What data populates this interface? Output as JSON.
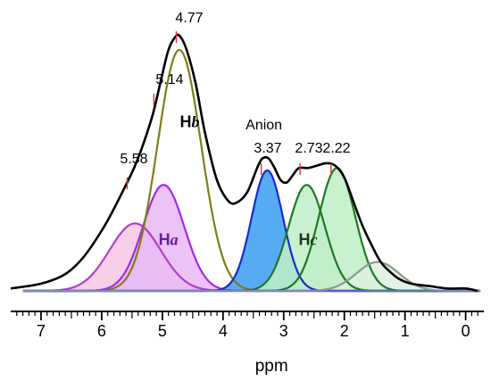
{
  "chart_data": {
    "type": "line",
    "xlabel": "ppm",
    "x_reversed": true,
    "xlim": [
      7.5,
      -0.3
    ],
    "x_ticks": [
      7,
      6,
      5,
      4,
      3,
      2,
      1,
      0
    ],
    "minor_tick_step": 0.1,
    "peak_labels": [
      {
        "x": 5.58,
        "text": "5.58"
      },
      {
        "x": 5.14,
        "text": "5.14"
      },
      {
        "x": 4.77,
        "text": "4.77"
      },
      {
        "x": 3.37,
        "text": "3.37"
      },
      {
        "x": 2.73,
        "text": "2.73"
      },
      {
        "x": 2.22,
        "text": "2.22"
      }
    ],
    "annotations": [
      {
        "text": "Anion",
        "x": 3.37
      },
      {
        "text": "H",
        "sub": "b",
        "x": 4.55,
        "y": 0.68,
        "color": "#000000"
      },
      {
        "text": "H",
        "sub": "a",
        "x": 4.9,
        "y": 0.19,
        "color": "#6a1b9a"
      },
      {
        "text": "H",
        "sub": "c",
        "x": 2.6,
        "y": 0.19,
        "color": "#1b3a1b"
      }
    ],
    "components": [
      {
        "center": 5.45,
        "height": 0.28,
        "width": 0.42,
        "stroke": "#b040c8",
        "fill": "#f4c6e4"
      },
      {
        "center": 4.98,
        "height": 0.44,
        "width": 0.34,
        "stroke": "#a42ae8",
        "fill": "#e8b8f6"
      },
      {
        "center": 4.72,
        "height": 1.0,
        "width": 0.36,
        "stroke": "#7e7e1a",
        "fill": "none"
      },
      {
        "center": 3.27,
        "height": 0.5,
        "width": 0.26,
        "stroke": "#1a2ad0",
        "fill": "#3a9cf0"
      },
      {
        "center": 2.62,
        "height": 0.44,
        "width": 0.3,
        "stroke": "#1e7a24",
        "fill": "#bfeec8"
      },
      {
        "center": 2.12,
        "height": 0.51,
        "width": 0.3,
        "stroke": "#1e7a24",
        "fill": "#bfeec8"
      },
      {
        "center": 1.45,
        "height": 0.12,
        "width": 0.35,
        "stroke": "#8a9a8a",
        "fill": "#dff0e0"
      }
    ],
    "spectrum": {
      "stroke": "#000000",
      "x": [
        7.5,
        7.0,
        6.6,
        6.3,
        6.0,
        5.8,
        5.6,
        5.45,
        5.3,
        5.15,
        5.0,
        4.9,
        4.8,
        4.72,
        4.6,
        4.45,
        4.3,
        4.1,
        3.9,
        3.75,
        3.6,
        3.5,
        3.42,
        3.35,
        3.25,
        3.15,
        3.05,
        2.95,
        2.85,
        2.75,
        2.6,
        2.45,
        2.3,
        2.15,
        2.0,
        1.85,
        1.7,
        1.55,
        1.4,
        1.25,
        1.1,
        0.9,
        0.6,
        0.3,
        0.0,
        -0.2
      ],
      "y": [
        0.01,
        0.03,
        0.07,
        0.14,
        0.25,
        0.34,
        0.44,
        0.52,
        0.62,
        0.74,
        0.9,
        1.0,
        1.05,
        1.06,
        1.0,
        0.86,
        0.66,
        0.46,
        0.37,
        0.37,
        0.41,
        0.47,
        0.52,
        0.55,
        0.55,
        0.51,
        0.46,
        0.45,
        0.48,
        0.51,
        0.51,
        0.52,
        0.53,
        0.52,
        0.47,
        0.37,
        0.27,
        0.19,
        0.12,
        0.08,
        0.05,
        0.03,
        0.02,
        0.01,
        0.01,
        0.0
      ]
    }
  }
}
